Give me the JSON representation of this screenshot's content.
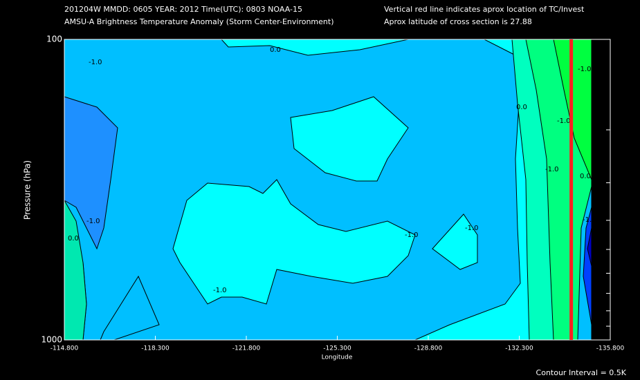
{
  "chart_data": {
    "type": "contour",
    "header_left": [
      "201204W  MMDD: 0605 YEAR: 2012 Time(UTC): 0803 NOAA-15",
      "AMSU-A Brightness Temperature Anomaly (Storm Center-Environment)"
    ],
    "header_right": [
      "Vertical red line indicates aprox location of TC/Invest",
      "Aprox latitude of cross section is 27.88"
    ],
    "x_label": "Longitude",
    "y_label": "Pressure (hPa)",
    "footer": "Contour Interval = 0.5K",
    "xlim": [
      -114.8,
      -135.8
    ],
    "xticks": [
      {
        "value": -114.8,
        "label": "-114.800"
      },
      {
        "value": -118.3,
        "label": "-118.300"
      },
      {
        "value": -121.8,
        "label": "-121.800"
      },
      {
        "value": -125.3,
        "label": "-125.300"
      },
      {
        "value": -128.8,
        "label": "-128.800"
      },
      {
        "value": -132.3,
        "label": "-132.300"
      },
      {
        "value": -135.8,
        "label": "-135.800"
      }
    ],
    "ylim": [
      100,
      1000
    ],
    "log_y": true,
    "yticks": [
      100,
      1000
    ],
    "yticks_minor": [
      200,
      300,
      400,
      500,
      600,
      700,
      800,
      900
    ],
    "tc_longitude": -134.3,
    "tc_line_color": "#ff2020",
    "contour_labels": [
      "-1.0",
      "0.0",
      "-1.0",
      "0.0",
      "-1.0",
      "-1.0",
      "-1.0",
      "-1.0",
      "0.0",
      "-1.0",
      "0.0",
      "-1.0",
      "-1.0"
    ]
  }
}
